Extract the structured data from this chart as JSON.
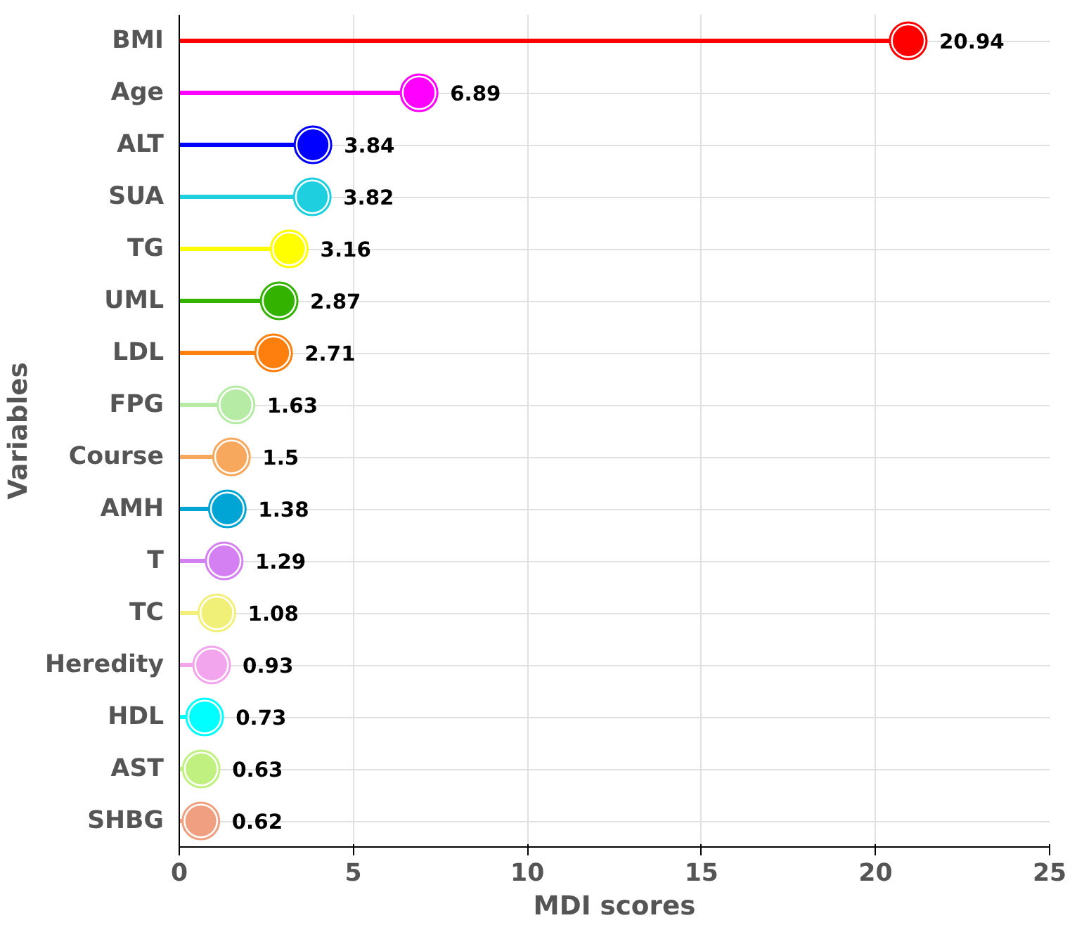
{
  "chart_data": {
    "type": "lollipop",
    "orientation": "horizontal",
    "xlabel": "MDI scores",
    "ylabel": "Variables",
    "categories": [
      "BMI",
      "Age",
      "ALT",
      "SUA",
      "TG",
      "UML",
      "LDL",
      "FPG",
      "Course",
      "AMH",
      "T",
      "TC",
      "Heredity",
      "HDL",
      "AST",
      "SHBG"
    ],
    "values": [
      20.94,
      6.89,
      3.84,
      3.82,
      3.16,
      2.87,
      2.71,
      1.63,
      1.5,
      1.38,
      1.29,
      1.08,
      0.93,
      0.73,
      0.63,
      0.62
    ],
    "colors": [
      "#ff0000",
      "#ff00ff",
      "#0000ff",
      "#1ecfe0",
      "#ffff00",
      "#33b200",
      "#ff7f0e",
      "#b5eba5",
      "#f7a85c",
      "#00a5d6",
      "#d580f2",
      "#f0f078",
      "#f2a5ec",
      "#00ffff",
      "#c0f080",
      "#f0a080"
    ],
    "xlim": [
      0,
      25
    ],
    "xticks": [
      0,
      5,
      10,
      15,
      20,
      25
    ],
    "grid": true,
    "data_labels": true,
    "marker": "circle"
  }
}
